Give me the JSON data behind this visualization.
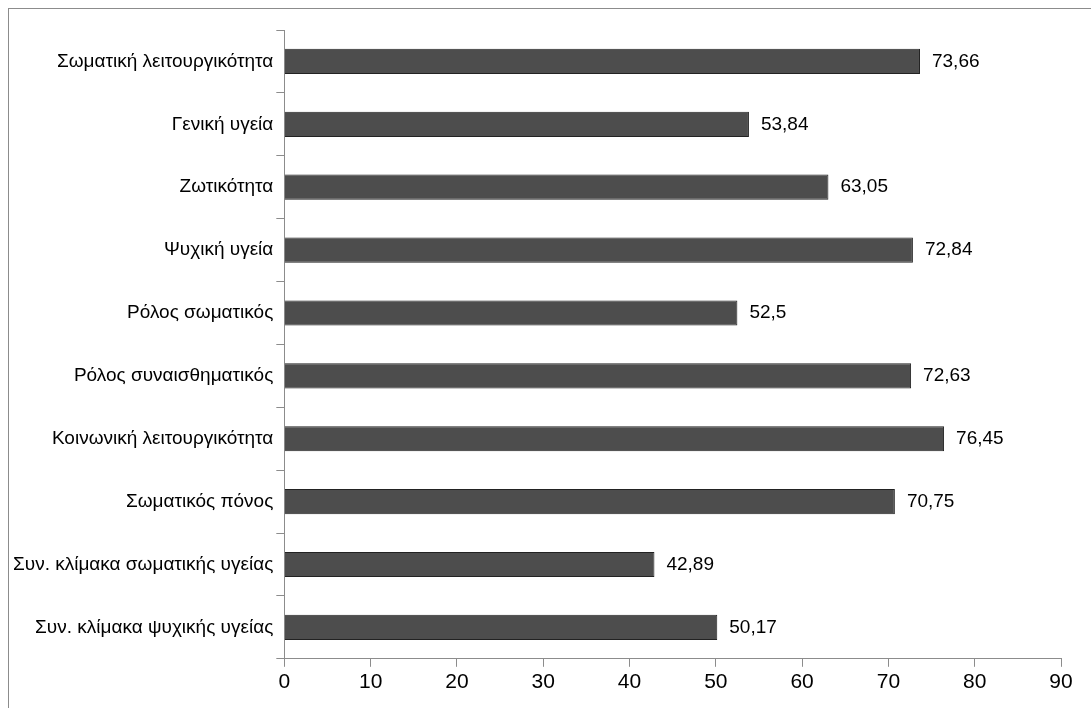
{
  "chart_data": {
    "type": "bar",
    "orientation": "horizontal",
    "categories": [
      "Σωματική λειτουργικότητα",
      "Γενική υγεία",
      "Ζωτικότητα",
      "Ψυχική υγεία",
      "Ρόλος σωματικός",
      "Ρόλος συναισθηματικός",
      "Κοινωνική λειτουργικότητα",
      "Σωματικός πόνος",
      "Συν. κλίμακα σωματικής υγείας",
      "Συν. κλίμακα ψυχικής υγείας"
    ],
    "values": [
      73.66,
      53.84,
      63.05,
      72.84,
      52.5,
      72.63,
      76.45,
      70.75,
      42.89,
      50.17
    ],
    "value_labels": [
      "73,66",
      "53,84",
      "63,05",
      "72,84",
      "52,5",
      "72,63",
      "76,45",
      "70,75",
      "42,89",
      "50,17"
    ],
    "color": "#4d4d4d",
    "xlim": [
      0,
      90
    ],
    "xticks": [
      0,
      10,
      20,
      30,
      40,
      50,
      60,
      70,
      80,
      90
    ],
    "grid": false,
    "legend": false
  }
}
